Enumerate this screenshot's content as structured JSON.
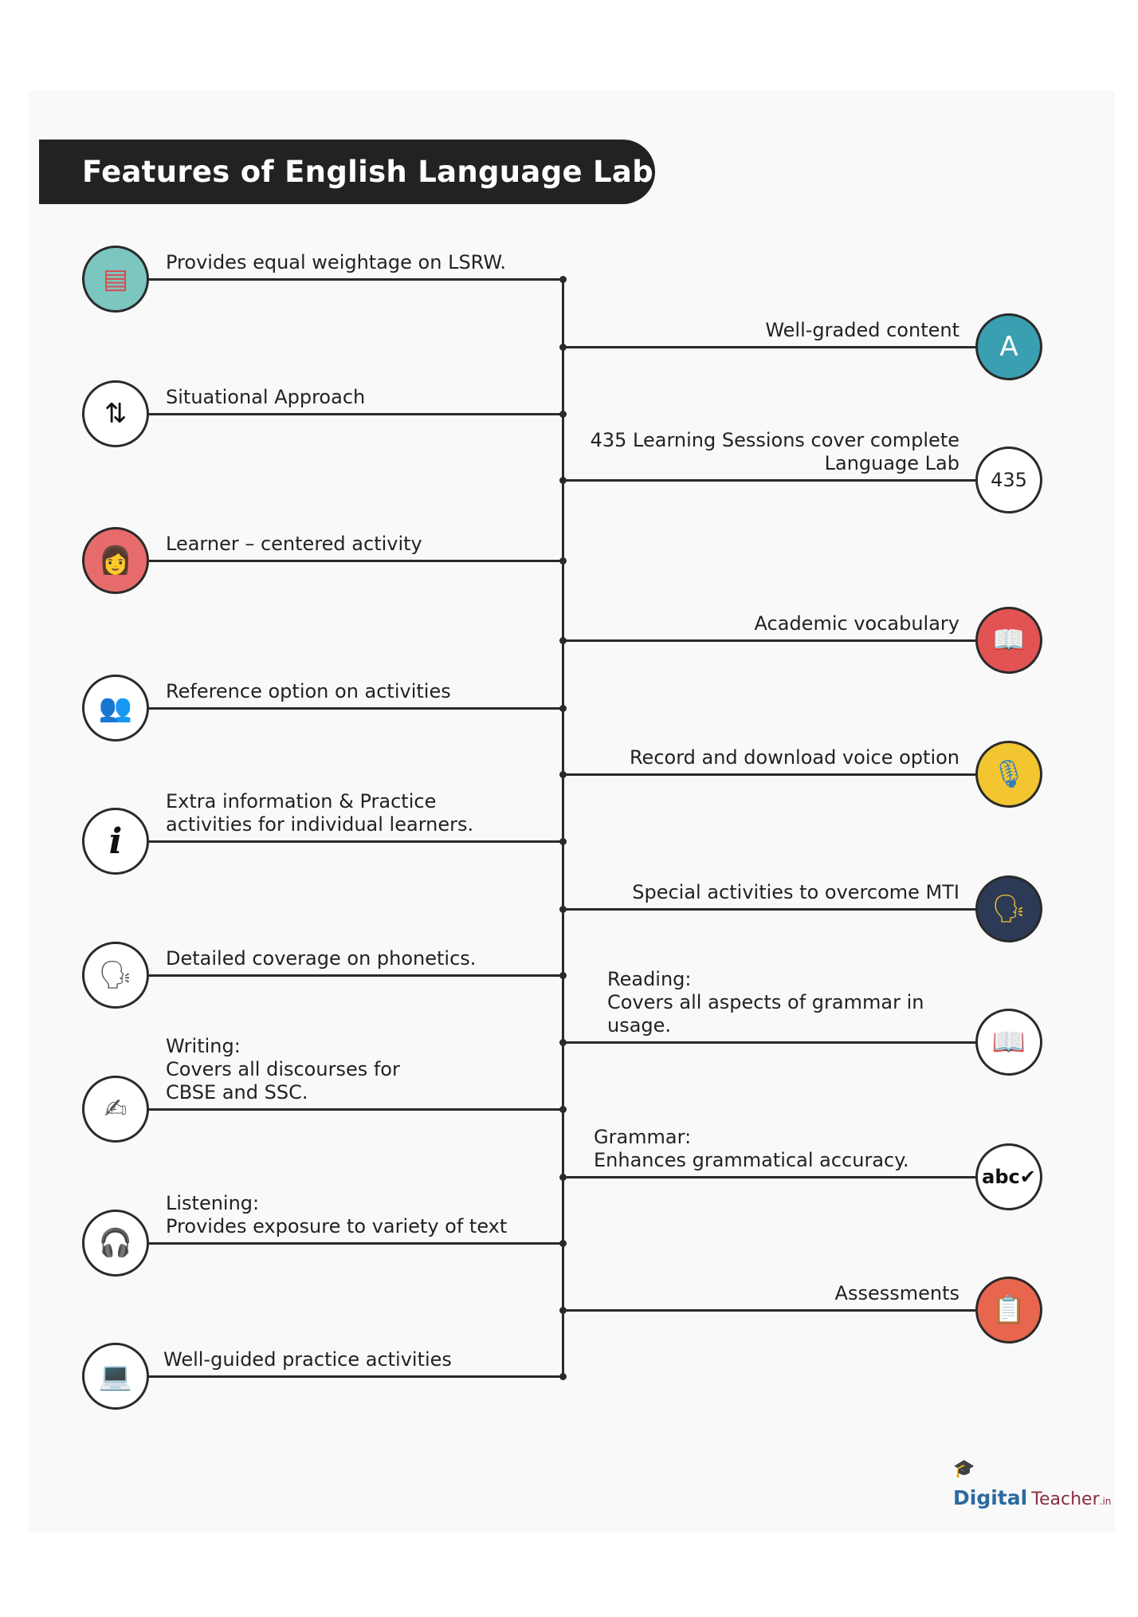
{
  "title": "Features of English Language Lab",
  "left_items": [
    {
      "lines": [
        "Provides equal weightage on LSRW."
      ],
      "icon": "lsrw-books-icon",
      "glyph": "▤",
      "bg": "#7cc6c0",
      "fg": "#d94b4b"
    },
    {
      "lines": [
        "Situational Approach"
      ],
      "icon": "direction-arrows-icon",
      "glyph": "⇅",
      "bg": "#ffffff",
      "fg": "#111111"
    },
    {
      "lines": [
        "Learner – centered activity"
      ],
      "icon": "learner-reading-icon",
      "glyph": "👩",
      "bg": "#e86b6b",
      "fg": "#3a2a2a"
    },
    {
      "lines": [
        "Reference option on activities"
      ],
      "icon": "people-reference-icon",
      "glyph": "👥",
      "bg": "#ffffff",
      "fg": "#111111"
    },
    {
      "lines": [
        "Extra information & Practice",
        "activities for individual learners."
      ],
      "icon": "info-icon",
      "glyph": "i",
      "bg": "#ffffff",
      "fg": "#111111"
    },
    {
      "lines": [
        "Detailed coverage on phonetics."
      ],
      "icon": "phonetics-head-icon",
      "glyph": "🗣",
      "bg": "#ffffff",
      "fg": "#555555"
    },
    {
      "lines": [
        "Writing:",
        "Covers all discourses for",
        "CBSE and SSC."
      ],
      "icon": "writing-person-icon",
      "glyph": "✍",
      "bg": "#ffffff",
      "fg": "#555555"
    },
    {
      "lines": [
        "Listening:",
        "Provides exposure to variety of text"
      ],
      "icon": "listening-headphones-icon",
      "glyph": "🎧",
      "bg": "#ffffff",
      "fg": "#555555"
    },
    {
      "lines": [
        "Well-guided practice activities"
      ],
      "icon": "practice-desk-icon",
      "glyph": "💻",
      "bg": "#ffffff",
      "fg": "#555555"
    }
  ],
  "right_items": [
    {
      "lines": [
        "Well-graded content"
      ],
      "icon": "graded-document-icon",
      "glyph": "A",
      "bg": "#3a9fb0",
      "fg": "#ffffff"
    },
    {
      "lines": [
        "435 Learning Sessions cover complete",
        "Language Lab"
      ],
      "icon": "sessions-count-badge",
      "glyph": "435",
      "bg": "#ffffff",
      "fg": "#222222"
    },
    {
      "lines": [
        "Academic vocabulary"
      ],
      "icon": "vocabulary-book-icon",
      "glyph": "📖",
      "bg": "#e25454",
      "fg": "#f5e6b0"
    },
    {
      "lines": [
        "Record and download voice option"
      ],
      "icon": "microphone-download-icon",
      "glyph": "🎙",
      "bg": "#f2c531",
      "fg": "#2f7fc1"
    },
    {
      "lines": [
        "Special activities to overcome MTI"
      ],
      "icon": "speaking-head-icon",
      "glyph": "🗣",
      "bg": "#2c3a55",
      "fg": "#f3c230"
    },
    {
      "lines": [
        "Reading:",
        "Covers all aspects of grammar in",
        "usage."
      ],
      "icon": "reading-person-icon",
      "glyph": "📖",
      "bg": "#ffffff",
      "fg": "#555555",
      "align": "left"
    },
    {
      "lines": [
        "Grammar:",
        "Enhances grammatical accuracy."
      ],
      "icon": "abc-check-icon",
      "glyph": "abc✔",
      "bg": "#ffffff",
      "fg": "#111111",
      "align": "left"
    },
    {
      "lines": [
        "Assessments"
      ],
      "icon": "clipboard-checklist-icon",
      "glyph": "📋",
      "bg": "#e8664e",
      "fg": "#ffffff"
    }
  ],
  "logo": {
    "cap": "🎓",
    "part1": "Digital",
    "part2": "Teacher",
    "part3": ".in"
  }
}
